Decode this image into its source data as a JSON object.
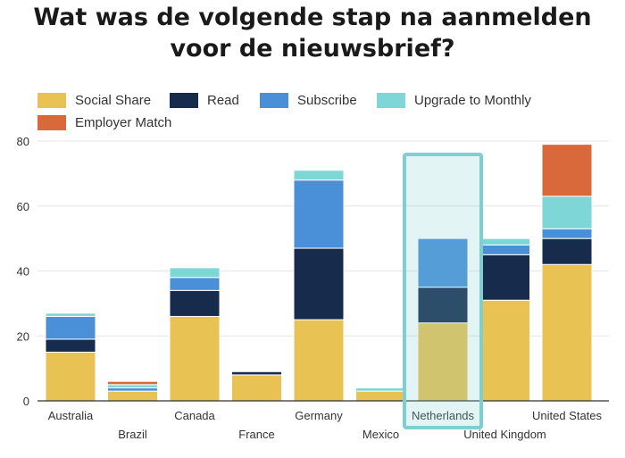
{
  "title_line1": "Wat was de volgende stap na aanmelden",
  "title_line2": "voor de nieuwsbrief?",
  "chart_data": {
    "type": "bar",
    "stacked": true,
    "categories": [
      "Australia",
      "Brazil",
      "Canada",
      "France",
      "Germany",
      "Mexico",
      "Netherlands",
      "United Kingdom",
      "United States"
    ],
    "series": [
      {
        "name": "Social Share",
        "color": "#e8c252",
        "values": [
          15,
          3,
          26,
          8,
          25,
          3,
          24,
          31,
          42
        ]
      },
      {
        "name": "Read",
        "color": "#172b4d",
        "values": [
          4,
          0,
          8,
          1,
          22,
          0,
          11,
          14,
          8
        ]
      },
      {
        "name": "Subscribe",
        "color": "#4a90d9",
        "values": [
          7,
          1,
          4,
          0,
          21,
          0,
          15,
          3,
          3
        ]
      },
      {
        "name": "Upgrade to Monthly",
        "color": "#7fd6d6",
        "values": [
          1,
          1,
          3,
          0,
          3,
          1,
          0,
          2,
          10
        ]
      },
      {
        "name": "Employer Match",
        "color": "#d9693a",
        "values": [
          0,
          1,
          0,
          0,
          0,
          0,
          0,
          0,
          16
        ]
      }
    ],
    "highlight": "Netherlands",
    "highlight_color": "#7ecfd2",
    "xlabel": "",
    "ylabel": "",
    "ylim": [
      0,
      80
    ],
    "yticks": [
      0,
      20,
      40,
      60,
      80
    ],
    "grid": true,
    "legend_position": "top-left"
  }
}
